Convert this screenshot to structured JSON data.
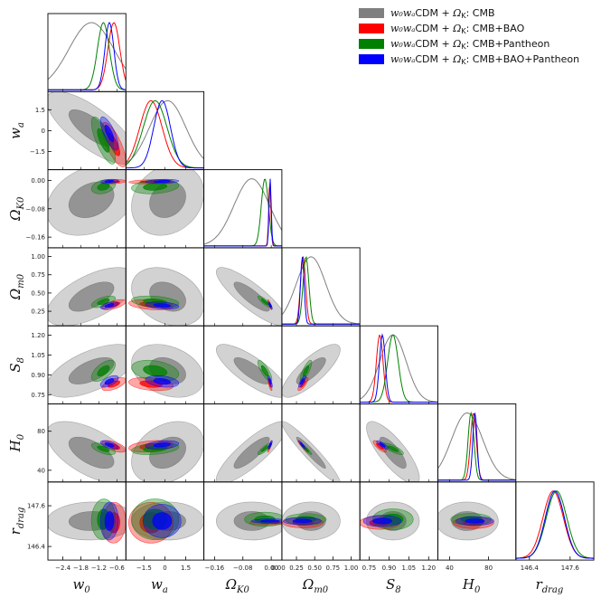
{
  "chart_data": {
    "type": "corner-triangle",
    "parameters": [
      {
        "name": "w0",
        "label": "w",
        "sub": "0",
        "range": [
          -2.9,
          -0.3
        ],
        "ticks": [
          -2.4,
          -1.8,
          -1.2,
          -0.6
        ],
        "tick_labels": [
          "−2.4",
          "−1.8",
          "−1.2",
          "−0.6"
        ]
      },
      {
        "name": "wa",
        "label": "w",
        "sub": "a",
        "range": [
          -2.8,
          2.8
        ],
        "ticks": [
          -1.5,
          0,
          1.5
        ],
        "tick_labels": [
          "−1.5",
          "0",
          "1.5"
        ]
      },
      {
        "name": "OmegaK0",
        "label": "Ω",
        "sub": "K0",
        "range": [
          -0.19,
          0.03
        ],
        "ticks": [
          -0.16,
          -0.08,
          0
        ],
        "tick_labels": [
          "−0.16",
          "−0.08",
          "0.00"
        ]
      },
      {
        "name": "Omegam0",
        "label": "Ω",
        "sub": "m0",
        "range": [
          0.05,
          1.12
        ],
        "ticks": [
          0.25,
          0.5,
          0.75,
          1.0
        ],
        "tick_labels": [
          "0.25",
          "0.50",
          "0.75",
          "1.00"
        ],
        "x_tick_labels": [
          "0.00",
          "0.25",
          "0.50",
          "0.75",
          "1.00"
        ]
      },
      {
        "name": "S8",
        "label": "S",
        "sub": "8",
        "range": [
          0.68,
          1.27
        ],
        "ticks": [
          0.75,
          0.9,
          1.05,
          1.2
        ],
        "tick_labels": [
          "0.75",
          "0.90",
          "1.05",
          "1.20"
        ]
      },
      {
        "name": "H0",
        "label": "H",
        "sub": "0",
        "range": [
          28,
          108
        ],
        "ticks": [
          40,
          80
        ],
        "tick_labels": [
          "40",
          "80"
        ]
      },
      {
        "name": "rdrag",
        "label": "r",
        "sub": "drag",
        "range": [
          146.0,
          148.3
        ],
        "ticks": [
          146.4,
          147.6
        ],
        "tick_labels": [
          "146.4",
          "147.6"
        ]
      }
    ],
    "series": [
      {
        "name": "w0waCDM + ΩK: CMB",
        "legend_math": "w0wa",
        "legend_rest": "CDM + ",
        "legend_tail": ": CMB",
        "color": "#7f7f7f",
        "mean": [
          -1.45,
          0.2,
          -0.055,
          0.45,
          0.93,
          58,
          147.15
        ],
        "sigma": [
          0.75,
          1.3,
          0.05,
          0.2,
          0.1,
          16,
          0.28
        ]
      },
      {
        "name": "w0waCDM + ΩK: CMB+BAO",
        "legend_math": "w0wa",
        "legend_rest": "CDM + ",
        "legend_tail": ": CMB+BAO",
        "color": "#ff0000",
        "mean": [
          -0.7,
          -1.0,
          -0.004,
          0.34,
          0.83,
          64.5,
          147.1
        ],
        "sigma": [
          0.2,
          0.8,
          0.003,
          0.035,
          0.025,
          3,
          0.3
        ]
      },
      {
        "name": "w0waCDM + ΩK: CMB+Pantheon",
        "legend_math": "w0wa",
        "legend_rest": "CDM + ",
        "legend_tail": ": CMB+Pantheon",
        "color": "#008000",
        "mean": [
          -1.05,
          -0.7,
          -0.018,
          0.38,
          0.93,
          62,
          147.2
        ],
        "sigma": [
          0.2,
          0.85,
          0.01,
          0.04,
          0.04,
          3,
          0.3
        ]
      },
      {
        "name": "w0waCDM + ΩK: CMB+BAO+Pantheon",
        "legend_math": "w0wa",
        "legend_rest": "CDM + ",
        "legend_tail": ": CMB+BAO+Pantheon",
        "color": "#0000ff",
        "mean": [
          -0.85,
          -0.2,
          -0.003,
          0.33,
          0.85,
          66,
          147.15
        ],
        "sigma": [
          0.15,
          0.6,
          0.003,
          0.025,
          0.022,
          2.2,
          0.28
        ]
      }
    ],
    "legend_placement": "top-right",
    "grid": false
  }
}
